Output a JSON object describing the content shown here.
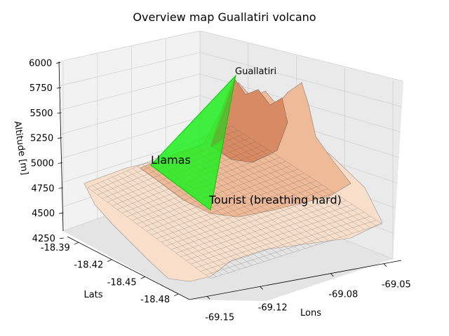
{
  "chart_data": {
    "type": "surface3d",
    "title": "Overview map Guallatiri volcano",
    "axes": {
      "x": {
        "label": "Lons",
        "ticks": [
          "-69.15",
          "-69.12",
          "-69.08",
          "-69.05"
        ],
        "range": [
          -69.16,
          -69.04
        ]
      },
      "y": {
        "label": "Lats",
        "ticks": [
          "-18.39",
          "-18.42",
          "-18.45",
          "-18.48"
        ],
        "range": [
          -18.49,
          -18.38
        ]
      },
      "z": {
        "label": "Altitude [m]",
        "ticks": [
          "4250",
          "4500",
          "4750",
          "5000",
          "5250",
          "5500",
          "5750",
          "6000"
        ],
        "range": [
          4200,
          6100
        ]
      }
    },
    "grid": true,
    "surface": {
      "colormap": [
        "#f7e3d3",
        "#f2c4a4",
        "#e8916a",
        "#d56a42"
      ],
      "wireframe_color": "#5a5a5a",
      "peaks": [
        {
          "lon": -69.09,
          "lat": -18.42,
          "altitude": 6060
        },
        {
          "lon": -69.07,
          "lat": -18.43,
          "altitude": 5900
        },
        {
          "lon": -69.1,
          "lat": -18.4,
          "altitude": 5650
        }
      ]
    },
    "route": {
      "color": "#00ee00",
      "points": [
        {
          "name": "Guallatiri",
          "lon": -69.09,
          "lat": -18.42,
          "altitude": 6060
        },
        {
          "name": "Llamas",
          "lon": -69.13,
          "lat": -18.43,
          "altitude": 4950
        },
        {
          "name": "Tourist (breathing hard)",
          "lon": -69.12,
          "lat": -18.46,
          "altitude": 4700
        }
      ]
    },
    "annotations": [
      {
        "text": "Guallatiri"
      },
      {
        "text": "Llamas"
      },
      {
        "text": "Tourist (breathing hard)"
      }
    ]
  },
  "colors": {
    "pane_back": "#f0f0f0",
    "pane_side": "#e8e8e8",
    "pane_floor": "#e0e0e0",
    "gridline": "#d2d2d2"
  }
}
